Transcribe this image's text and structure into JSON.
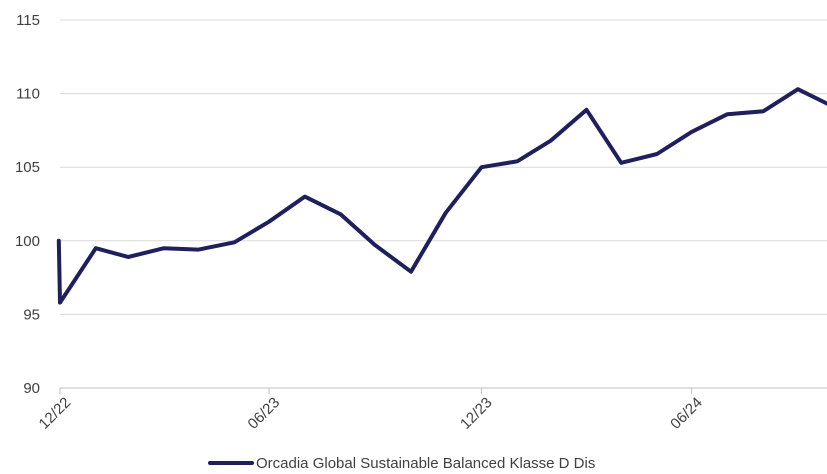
{
  "chart_data": {
    "type": "line",
    "title": "",
    "xlabel": "",
    "ylabel": "",
    "ylim": [
      90,
      115
    ],
    "yticks": [
      "90",
      "95",
      "100",
      "105",
      "110",
      "115"
    ],
    "xtick_labels": [
      "12/22",
      "06/23",
      "12/23",
      "06/24"
    ],
    "grid": "horizontal",
    "legend_position": "bottom",
    "colors": {
      "series": "#1f1f5e",
      "grid": "#d9d9d9",
      "axis": "#bfbfbf",
      "text": "#404040"
    },
    "x": [
      "2022-12-30",
      "2022-12-31",
      "2023-01-31",
      "2023-02-28",
      "2023-03-31",
      "2023-04-30",
      "2023-05-31",
      "2023-06-30",
      "2023-07-31",
      "2023-08-31",
      "2023-09-30",
      "2023-10-31",
      "2023-11-30",
      "2023-12-31",
      "2024-01-31",
      "2024-02-29",
      "2024-03-31",
      "2024-04-30",
      "2024-05-31",
      "2024-06-30",
      "2024-07-31",
      "2024-08-31",
      "2024-09-30",
      "2024-10-31"
    ],
    "series": [
      {
        "name": "Orcadia Global Sustainable Balanced Klasse D Dis",
        "values": [
          100.0,
          95.8,
          99.5,
          98.9,
          99.5,
          99.4,
          99.9,
          101.3,
          103.0,
          101.8,
          99.7,
          97.9,
          101.9,
          105.0,
          105.4,
          106.8,
          108.9,
          105.3,
          105.9,
          107.4,
          108.6,
          108.8,
          110.3,
          109.1
        ]
      }
    ]
  }
}
